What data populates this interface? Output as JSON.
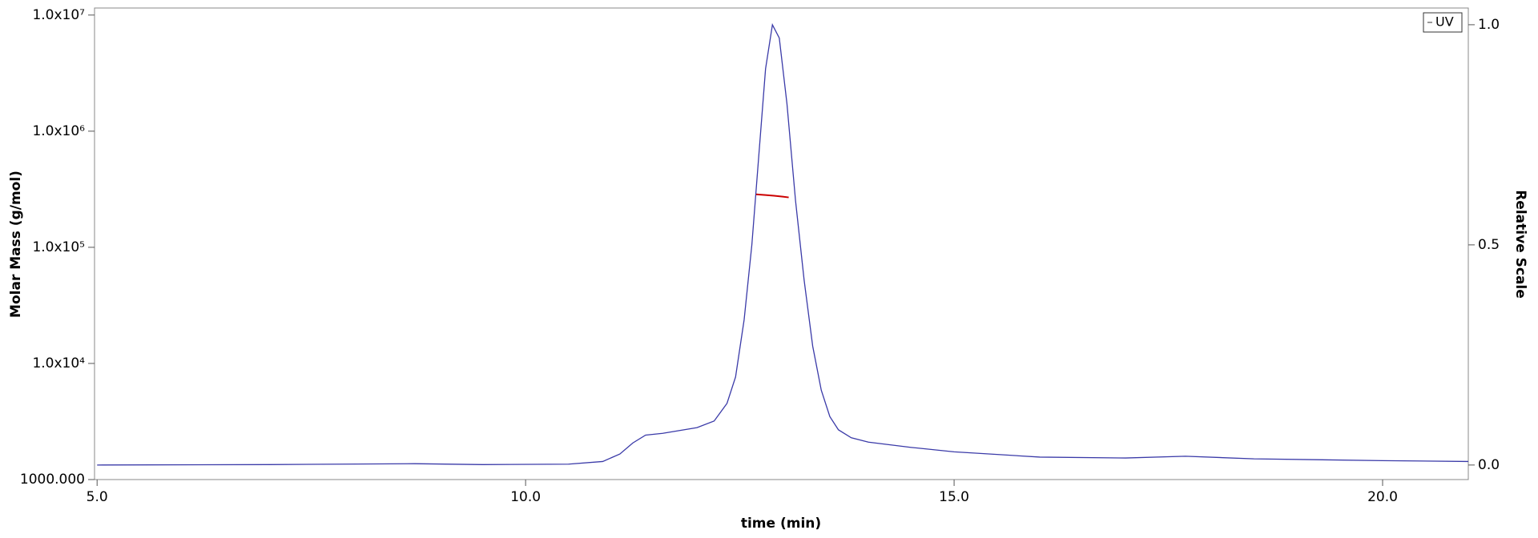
{
  "chart_data": {
    "type": "line",
    "xlabel": "time (min)",
    "ylabel": "Molar Mass (g/mol)",
    "y2label": "Relative Scale",
    "yscale": "log",
    "legend": "top-right",
    "xlim": [
      4.97,
      21.0
    ],
    "xticks": [
      {
        "value": 5,
        "label": "5.0"
      },
      {
        "value": 10,
        "label": "10.0"
      },
      {
        "value": 15,
        "label": "15.0"
      },
      {
        "value": 20,
        "label": "20.0"
      }
    ],
    "ylim": [
      1000,
      11500000
    ],
    "yticks": [
      {
        "value": 1000,
        "label": "1000.000"
      },
      {
        "value": 10000,
        "label": "1.0x10⁴"
      },
      {
        "value": 100000,
        "label": "1.0x10⁵"
      },
      {
        "value": 1000000,
        "label": "1.0x10⁶"
      },
      {
        "value": 10000000,
        "label": "1.0x10⁷"
      }
    ],
    "y2lim": [
      -0.033,
      1.038
    ],
    "y2ticks": [
      {
        "value": 0,
        "label": "0.0"
      },
      {
        "value": 0.5,
        "label": "0.5"
      },
      {
        "value": 1,
        "label": "1.0"
      }
    ],
    "series": [
      {
        "name": "UV",
        "color": "#3a3aa8",
        "axis": "y2",
        "x": [
          5.0,
          7.0,
          8.7,
          9.5,
          10.5,
          10.9,
          11.1,
          11.25,
          11.4,
          11.6,
          12.0,
          12.2,
          12.35,
          12.45,
          12.55,
          12.64,
          12.72,
          12.8,
          12.88,
          12.96,
          13.05,
          13.15,
          13.25,
          13.35,
          13.45,
          13.55,
          13.65,
          13.8,
          14.0,
          14.5,
          15.0,
          15.5,
          16.0,
          17.0,
          17.7,
          18.5,
          20.0,
          21.0
        ],
        "values": [
          0.0,
          0.001,
          0.003,
          0.001,
          0.002,
          0.008,
          0.025,
          0.05,
          0.068,
          0.072,
          0.085,
          0.1,
          0.14,
          0.2,
          0.33,
          0.5,
          0.7,
          0.9,
          1.0,
          0.97,
          0.82,
          0.6,
          0.42,
          0.27,
          0.17,
          0.11,
          0.08,
          0.062,
          0.052,
          0.04,
          0.03,
          0.024,
          0.018,
          0.016,
          0.02,
          0.014,
          0.01,
          0.008
        ]
      },
      {
        "color": "#cc0000",
        "x": [
          12.69,
          12.8,
          12.9,
          13.0,
          13.07
        ],
        "values": [
          286000,
          282000,
          278000,
          273000,
          269000
        ]
      }
    ]
  }
}
